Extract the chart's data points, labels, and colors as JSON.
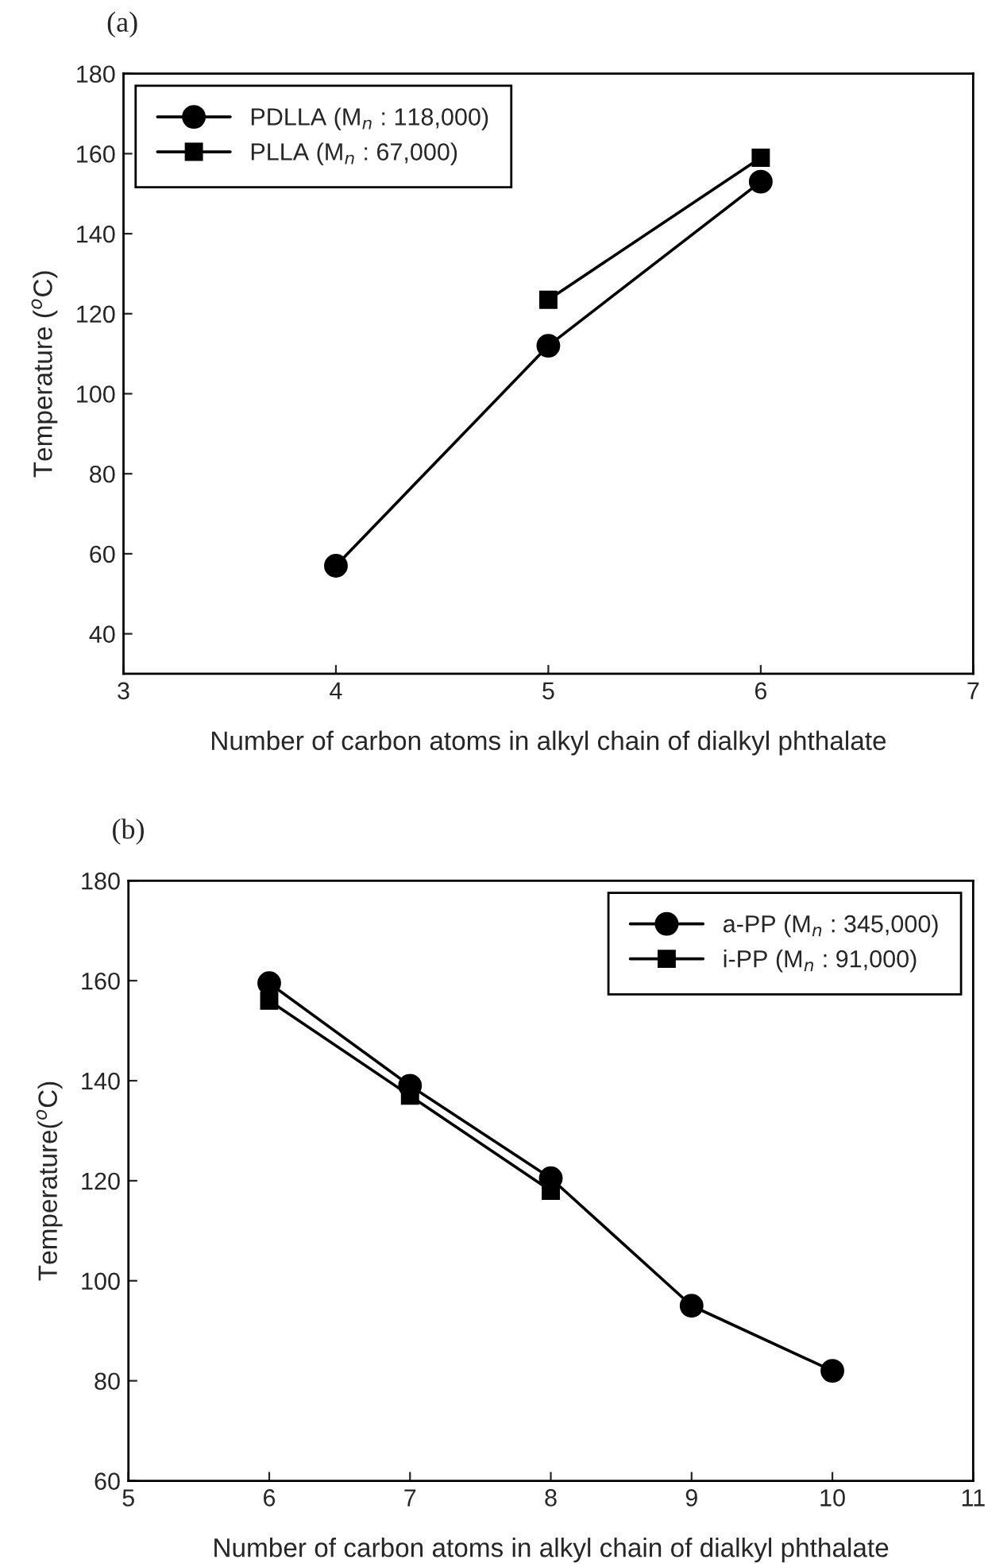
{
  "chart_data": [
    {
      "type": "line",
      "title": "(a)",
      "xlabel": "Number of carbon atoms in alkyl chain of dialkyl phthalate",
      "ylabel": "Temperature ($^{o}$C)",
      "xlim": [
        3,
        7
      ],
      "xticks": [
        3,
        4,
        5,
        6,
        7
      ],
      "ylim": [
        30,
        180
      ],
      "yticks": [
        40,
        60,
        80,
        100,
        120,
        140,
        160,
        180
      ],
      "legend": "top left",
      "grid": false,
      "series": [
        {
          "name": "PDLLA (M$_{n}$ : 118,000)",
          "color": "#000000",
          "marker": "circle",
          "x": [
            4,
            5,
            6
          ],
          "values": [
            57,
            112,
            153
          ]
        },
        {
          "name": "PLLA (M$_{n}$ : 67,000)",
          "color": "#000000",
          "marker": "square",
          "x": [
            5,
            6
          ],
          "values": [
            123.5,
            159
          ]
        }
      ]
    },
    {
      "type": "line",
      "title": "(b)",
      "xlabel": "Number of carbon atoms in alkyl chain of dialkyl phthalate",
      "ylabel": "Temperature($^{o}$C)",
      "xlim": [
        5,
        11
      ],
      "xticks": [
        5,
        6,
        7,
        8,
        9,
        10,
        11
      ],
      "ylim": [
        60,
        180
      ],
      "yticks": [
        60,
        80,
        100,
        120,
        140,
        160,
        180
      ],
      "legend": "top right",
      "grid": false,
      "series": [
        {
          "name": "a-PP (M$_{n}$ : 345,000)",
          "color": "#000000",
          "marker": "circle",
          "x": [
            6,
            7,
            8,
            9,
            10
          ],
          "values": [
            159.5,
            139,
            120.5,
            95,
            82
          ]
        },
        {
          "name": "i-PP (M$_{n}$ : 91,000)",
          "color": "#000000",
          "marker": "square",
          "x": [
            6,
            7,
            8
          ],
          "values": [
            156,
            137,
            118
          ]
        }
      ]
    }
  ]
}
